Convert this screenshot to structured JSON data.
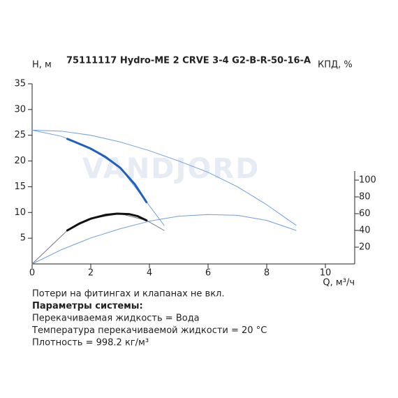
{
  "chart_data": {
    "type": "line",
    "title": "75111117 Hydro-ME 2 CRVE 3-4 G2-B-R-50-16-A",
    "ylabel": "Н, м",
    "y2label": "КПД, %",
    "xlabel": "Q, м³/ч",
    "watermark": "VANDJORD",
    "xlim": [
      0,
      11
    ],
    "xticks": [
      0,
      2,
      4,
      6,
      8,
      10
    ],
    "ylim": [
      0,
      35
    ],
    "yticks": [
      5,
      10,
      15,
      20,
      25,
      30,
      35
    ],
    "y2lim": [
      0,
      215
    ],
    "y2ticks": [
      20,
      40,
      60,
      80,
      100
    ],
    "series": [
      {
        "color": "#6f9fe0",
        "line_width": 1,
        "x": [
          0,
          1,
          2,
          3,
          4,
          5,
          6,
          7,
          8,
          9
        ],
        "values": [
          26,
          25.8,
          25,
          23.7,
          22,
          20,
          17.8,
          15,
          11.5,
          7.5
        ]
      },
      {
        "color": "#6f9fe0",
        "line_width": 1,
        "x": [
          0,
          1,
          2,
          3,
          4,
          4.5
        ],
        "values": [
          26,
          24.8,
          22.4,
          18.7,
          11.3,
          7.5
        ]
      },
      {
        "color": "#1f5fbf",
        "line_width": 3,
        "x": [
          1.2,
          1.5,
          2,
          2.5,
          3,
          3.5,
          3.9
        ],
        "values": [
          24.3,
          23.6,
          22.4,
          20.8,
          18.7,
          15.5,
          12
        ]
      },
      {
        "color": "#6f9fe0",
        "line_width": 1,
        "axis": "y2",
        "x": [
          0,
          1,
          2,
          3,
          4,
          5,
          6,
          7,
          8,
          9
        ],
        "values": [
          0,
          17,
          31,
          42,
          51,
          57,
          59,
          58,
          52,
          40
        ]
      },
      {
        "color": "#777777",
        "line_width": 1,
        "axis": "y2",
        "x": [
          0,
          0.6,
          1.2,
          2,
          3,
          3.9,
          4.5
        ],
        "values": [
          0,
          20,
          40,
          54,
          60,
          52,
          40
        ]
      },
      {
        "color": "#111111",
        "line_width": 3,
        "axis": "y2",
        "x": [
          1.2,
          1.6,
          2,
          2.5,
          2.9,
          3.3,
          3.6,
          3.9
        ],
        "values": [
          40,
          48,
          54,
          58.5,
          60,
          59.5,
          57,
          52
        ]
      }
    ]
  },
  "notes": [
    {
      "text": "Потери на фитингах и клапанах не вкл.",
      "bold": false
    },
    {
      "text": "Параметры системы:",
      "bold": true
    },
    {
      "text": "Перекачиваемая жидкость = Вода",
      "bold": false
    },
    {
      "text": "Температура перекачиваемой жидкости = 20 °C",
      "bold": false
    },
    {
      "text": "Плотность = 998.2 кг/м³",
      "bold": false
    }
  ]
}
